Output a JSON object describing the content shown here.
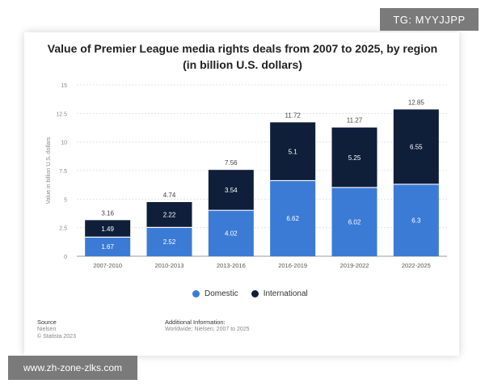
{
  "watermark_top": "TG: MYYJJPP",
  "watermark_bottom": "www.zh-zone-zlks.com",
  "legend": [
    {
      "label": "Domestic",
      "color": "#3b7bd5"
    },
    {
      "label": "International",
      "color": "#0f1f3a"
    }
  ],
  "footer": {
    "source_label": "Source",
    "source_line1": "Nielsen",
    "source_line2": "© Statista 2023",
    "info_label": "Additional Information:",
    "info_line1": "Worldwide; Nielsen; 2007 to 2025"
  },
  "chart_data": {
    "type": "bar",
    "stacked": true,
    "title": "Value of Premier League media rights deals from 2007 to 2025, by region (in billion U.S. dollars)",
    "xlabel": "",
    "ylabel": "Value in billion U.S. dollars",
    "ylim": [
      0,
      15
    ],
    "yticks": [
      0,
      2.5,
      5,
      7.5,
      10,
      12.5,
      15
    ],
    "ytick_labels": [
      "0",
      "2.5",
      "5",
      "7.5",
      "10",
      "12.5",
      "15"
    ],
    "grid": true,
    "legend_position": "bottom",
    "categories": [
      "2007-2010",
      "2010-2013",
      "2013-2016",
      "2016-2019",
      "2019-2022",
      "2022-2025"
    ],
    "series": [
      {
        "name": "Domestic",
        "color": "#3b7bd5",
        "values": [
          1.67,
          2.52,
          4.02,
          6.62,
          6.02,
          6.3
        ],
        "labels": [
          "1.67",
          "2.52",
          "4.02",
          "6.62",
          "6.02",
          "6.3"
        ]
      },
      {
        "name": "International",
        "color": "#0f1f3a",
        "values": [
          1.49,
          2.22,
          3.54,
          5.1,
          5.25,
          6.55
        ],
        "labels": [
          "1.49",
          "2.22",
          "3.54",
          "5.1",
          "5.25",
          "6.55"
        ]
      }
    ],
    "totals": [
      3.16,
      4.74,
      7.56,
      11.72,
      11.27,
      12.85
    ],
    "total_labels": [
      "3.16",
      "4.74",
      "7.56",
      "11.72",
      "11.27",
      "12.85"
    ]
  }
}
